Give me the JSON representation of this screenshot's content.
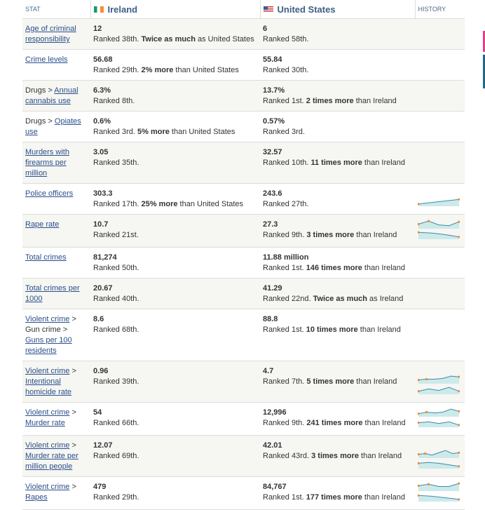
{
  "header": {
    "stat": "STAT",
    "country1": "Ireland",
    "country2": "United States",
    "history": "HISTORY"
  },
  "rows": [
    {
      "stat": [
        {
          "t": "Age of criminal responsibility",
          "link": true
        }
      ],
      "v1": "12",
      "r1": "Ranked 38th. ",
      "b1": "Twice as much",
      "s1": " as United States",
      "v2": "6",
      "r2": "Ranked 58th.",
      "b2": "",
      "s2": ""
    },
    {
      "stat": [
        {
          "t": "Crime levels",
          "link": true
        }
      ],
      "v1": "56.68",
      "r1": "Ranked 29th. ",
      "b1": "2% more",
      "s1": " than United States",
      "v2": "55.84",
      "r2": "Ranked 30th.",
      "b2": "",
      "s2": ""
    },
    {
      "stat": [
        {
          "t": "Drugs > ",
          "link": false
        },
        {
          "t": "Annual cannabis use",
          "link": true
        }
      ],
      "v1": "6.3%",
      "r1": "Ranked 8th.",
      "b1": "",
      "s1": "",
      "v2": "13.7%",
      "r2": "Ranked 1st. ",
      "b2": "2 times more",
      "s2": " than Ireland"
    },
    {
      "stat": [
        {
          "t": "Drugs > ",
          "link": false
        },
        {
          "t": "Opiates use",
          "link": true
        }
      ],
      "v1": "0.6%",
      "r1": "Ranked 3rd. ",
      "b1": "5% more",
      "s1": " than United States",
      "v2": "0.57%",
      "r2": "Ranked 3rd.",
      "b2": "",
      "s2": ""
    },
    {
      "stat": [
        {
          "t": "Murders with firearms per million",
          "link": true
        }
      ],
      "v1": "3.05",
      "r1": "Ranked 35th.",
      "b1": "",
      "s1": "",
      "v2": "32.57",
      "r2": "Ranked 10th. ",
      "b2": "11 times more",
      "s2": " than Ireland"
    },
    {
      "stat": [
        {
          "t": "Police officers",
          "link": true
        }
      ],
      "v1": "303.3",
      "r1": "Ranked 17th. ",
      "b1": "25% more",
      "s1": " than United States",
      "v2": "243.6",
      "r2": "Ranked 27th.",
      "b2": "",
      "s2": "",
      "spark": [
        [
          2,
          8
        ]
      ]
    },
    {
      "stat": [
        {
          "t": "Rape rate",
          "link": true
        }
      ],
      "v1": "10.7",
      "r1": "Ranked 21st.",
      "b1": "",
      "s1": "",
      "v2": "27.3",
      "r2": "Ranked 9th. ",
      "b2": "3 times more",
      "s2": " than Ireland",
      "spark": [
        [
          5,
          9,
          4,
          3,
          8
        ],
        [
          8,
          7,
          5,
          2
        ]
      ]
    },
    {
      "stat": [
        {
          "t": "Total crimes",
          "link": true
        }
      ],
      "v1": "81,274",
      "r1": "Ranked 50th.",
      "b1": "",
      "s1": "",
      "v2": "11.88 million",
      "r2": "Ranked 1st. ",
      "b2": "146 times more",
      "s2": " than Ireland"
    },
    {
      "stat": [
        {
          "t": "Total crimes per 1000",
          "link": true
        }
      ],
      "v1": "20.67",
      "r1": "Ranked 40th.",
      "b1": "",
      "s1": "",
      "v2": "41.29",
      "r2": "Ranked 22nd. ",
      "b2": "Twice as much",
      "s2": " as Ireland"
    },
    {
      "stat": [
        {
          "t": "Violent crime",
          "link": true
        },
        {
          "t": " > Gun crime > ",
          "link": false
        },
        {
          "t": "Guns per 100 residents",
          "link": true
        }
      ],
      "v1": "8.6",
      "r1": "Ranked 68th.",
      "b1": "",
      "s1": "",
      "v2": "88.8",
      "r2": "Ranked 1st. ",
      "b2": "10 times more",
      "s2": " than Ireland"
    },
    {
      "stat": [
        {
          "t": "Violent crime",
          "link": true
        },
        {
          "t": " > ",
          "link": false
        },
        {
          "t": "Intentional homicide rate",
          "link": true
        }
      ],
      "v1": "0.96",
      "r1": "Ranked 39th.",
      "b1": "",
      "s1": "",
      "v2": "4.7",
      "r2": "Ranked 7th. ",
      "b2": "5 times more",
      "s2": " than Ireland",
      "spark": [
        [
          4,
          5,
          5,
          6,
          9,
          8
        ],
        [
          3,
          6,
          4,
          8,
          3
        ]
      ]
    },
    {
      "stat": [
        {
          "t": "Violent crime",
          "link": true
        },
        {
          "t": " > ",
          "link": false
        },
        {
          "t": "Murder rate",
          "link": true
        }
      ],
      "v1": "54",
      "r1": "Ranked 66th.",
      "b1": "",
      "s1": "",
      "v2": "12,996",
      "r2": "Ranked 9th. ",
      "b2": "241 times more",
      "s2": " than Ireland",
      "spark": [
        [
          3,
          5,
          4,
          5,
          9,
          6
        ],
        [
          5,
          6,
          4,
          6,
          2
        ]
      ]
    },
    {
      "stat": [
        {
          "t": "Violent crime",
          "link": true
        },
        {
          "t": " > ",
          "link": false
        },
        {
          "t": "Murder rate per million people",
          "link": true
        }
      ],
      "v1": "12.07",
      "r1": "Ranked 69th.",
      "b1": "",
      "s1": "",
      "v2": "42.01",
      "r2": "Ranked 43rd. ",
      "b2": "3 times more",
      "s2": " than Ireland",
      "spark": [
        [
          4,
          5,
          3,
          6,
          9,
          5,
          6
        ],
        [
          6,
          7,
          6,
          4,
          2
        ]
      ]
    },
    {
      "stat": [
        {
          "t": "Violent crime",
          "link": true
        },
        {
          "t": " > ",
          "link": false
        },
        {
          "t": "Rapes",
          "link": true
        }
      ],
      "v1": "479",
      "r1": "Ranked 29th.",
      "b1": "",
      "s1": "",
      "v2": "84,767",
      "r2": "Ranked 1st. ",
      "b2": "177 times more",
      "s2": " than Ireland",
      "spark": [
        [
          6,
          8,
          5,
          5,
          9
        ],
        [
          7,
          6,
          4,
          2
        ]
      ]
    }
  ],
  "colors": {
    "link": "#2a4f8a",
    "spark_line": "#3a8ab0",
    "spark_fill": "#cdeaea",
    "spark_dot": "#f08a24"
  }
}
